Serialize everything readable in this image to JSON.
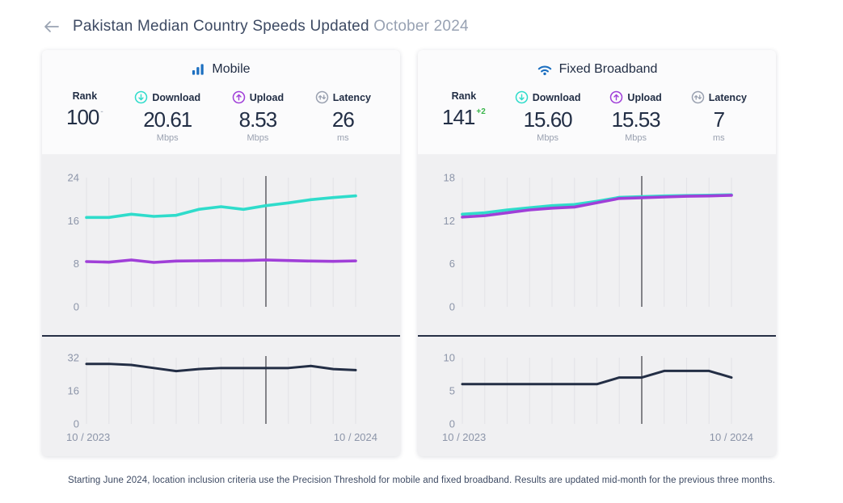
{
  "header": {
    "title_main": "Pakistan Median Country Speeds Updated",
    "title_date": "October 2024"
  },
  "cards": [
    {
      "title": "Mobile",
      "stats": [
        {
          "label": "Rank",
          "value": "100",
          "change": "-",
          "unit": ""
        },
        {
          "label": "Download",
          "value": "20.61",
          "unit": "Mbps"
        },
        {
          "label": "Upload",
          "value": "8.53",
          "unit": "Mbps"
        },
        {
          "label": "Latency",
          "value": "26",
          "unit": "ms"
        }
      ]
    },
    {
      "title": "Fixed Broadband",
      "stats": [
        {
          "label": "Rank",
          "value": "141",
          "change": "+2",
          "unit": ""
        },
        {
          "label": "Download",
          "value": "15.60",
          "unit": "Mbps"
        },
        {
          "label": "Upload",
          "value": "15.53",
          "unit": "Mbps"
        },
        {
          "label": "Latency",
          "value": "7",
          "unit": "ms"
        }
      ]
    }
  ],
  "chart_data": [
    {
      "id": "mobile-speed",
      "type": "line",
      "kind": "speed",
      "title": "Mobile download & upload speeds (Mbps), monthly",
      "x": [
        "10/2023",
        "11/2023",
        "12/2023",
        "01/2024",
        "02/2024",
        "03/2024",
        "04/2024",
        "05/2024",
        "06/2024",
        "07/2024",
        "08/2024",
        "09/2024",
        "10/2024"
      ],
      "ylim": [
        0,
        24
      ],
      "yticks": [
        24,
        16,
        8,
        0
      ],
      "grid": "vertical",
      "legend": "none",
      "marker_x": "06/2024",
      "marker_index": 8,
      "series": [
        {
          "name": "Download (Mbps)",
          "color": "#2fdccb",
          "values": [
            16.6,
            16.6,
            17.2,
            16.8,
            17.0,
            18.1,
            18.6,
            18.1,
            18.8,
            19.3,
            19.9,
            20.3,
            20.61
          ]
        },
        {
          "name": "Upload (Mbps)",
          "color": "#a03fd8",
          "values": [
            8.4,
            8.3,
            8.7,
            8.25,
            8.5,
            8.55,
            8.6,
            8.6,
            8.7,
            8.6,
            8.5,
            8.45,
            8.53
          ]
        }
      ]
    },
    {
      "id": "mobile-latency",
      "type": "line",
      "kind": "latency",
      "title": "Mobile latency (ms), monthly",
      "x": [
        "10/2023",
        "11/2023",
        "12/2023",
        "01/2024",
        "02/2024",
        "03/2024",
        "04/2024",
        "05/2024",
        "06/2024",
        "07/2024",
        "08/2024",
        "09/2024",
        "10/2024"
      ],
      "x_axis_labels": [
        "10 / 2023",
        "10 / 2024"
      ],
      "ylim": [
        0,
        32
      ],
      "yticks": [
        32,
        16,
        0
      ],
      "grid": "vertical",
      "legend": "none",
      "marker_x": "06/2024",
      "marker_index": 8,
      "series": [
        {
          "name": "Latency (ms)",
          "color": "#232e45",
          "values": [
            29,
            29,
            28.5,
            27,
            25.5,
            26.5,
            27,
            27,
            27,
            27,
            28,
            26.5,
            26
          ]
        }
      ]
    },
    {
      "id": "fixed-speed",
      "type": "line",
      "kind": "speed",
      "title": "Fixed broadband download & upload speeds (Mbps), monthly",
      "x": [
        "10/2023",
        "11/2023",
        "12/2023",
        "01/2024",
        "02/2024",
        "03/2024",
        "04/2024",
        "05/2024",
        "06/2024",
        "07/2024",
        "08/2024",
        "09/2024",
        "10/2024"
      ],
      "ylim": [
        0,
        18
      ],
      "yticks": [
        18,
        12,
        6,
        0
      ],
      "grid": "vertical",
      "legend": "none",
      "marker_x": "06/2024",
      "marker_index": 8,
      "series": [
        {
          "name": "Download (Mbps)",
          "color": "#2fdccb",
          "values": [
            12.9,
            13.1,
            13.5,
            13.8,
            14.1,
            14.25,
            14.7,
            15.25,
            15.35,
            15.45,
            15.5,
            15.55,
            15.6
          ]
        },
        {
          "name": "Upload (Mbps)",
          "color": "#a03fd8",
          "values": [
            12.5,
            12.7,
            13.1,
            13.5,
            13.75,
            13.9,
            14.5,
            15.1,
            15.2,
            15.3,
            15.4,
            15.45,
            15.53
          ]
        }
      ]
    },
    {
      "id": "fixed-latency",
      "type": "line",
      "kind": "latency",
      "title": "Fixed broadband latency (ms), monthly",
      "x": [
        "10/2023",
        "11/2023",
        "12/2023",
        "01/2024",
        "02/2024",
        "03/2024",
        "04/2024",
        "05/2024",
        "06/2024",
        "07/2024",
        "08/2024",
        "09/2024",
        "10/2024"
      ],
      "x_axis_labels": [
        "10 / 2023",
        "10 / 2024"
      ],
      "ylim": [
        0,
        10
      ],
      "yticks": [
        10,
        5,
        0
      ],
      "grid": "vertical",
      "legend": "none",
      "marker_x": "06/2024",
      "marker_index": 8,
      "series": [
        {
          "name": "Latency (ms)",
          "color": "#232e45",
          "values": [
            6,
            6,
            6,
            6,
            6,
            6,
            6,
            7,
            7,
            8,
            8,
            8,
            7
          ]
        }
      ]
    }
  ],
  "footer": {
    "note": "Starting June 2024, location inclusion criteria use the Precision Threshold for mobile and fixed broadband. Results are updated mid-month for the previous three months."
  },
  "colors": {
    "teal": "#2fdccb",
    "purple": "#a03fd8",
    "navy": "#232e45",
    "blue": "#1c6fc0",
    "green": "#39b54a",
    "axis": "#8c95a9",
    "grid": "#e4e4e8",
    "marker": "#3c3c44",
    "chart_bg": "#f0f0f2",
    "card_top_bg": "#fbfbfc"
  }
}
